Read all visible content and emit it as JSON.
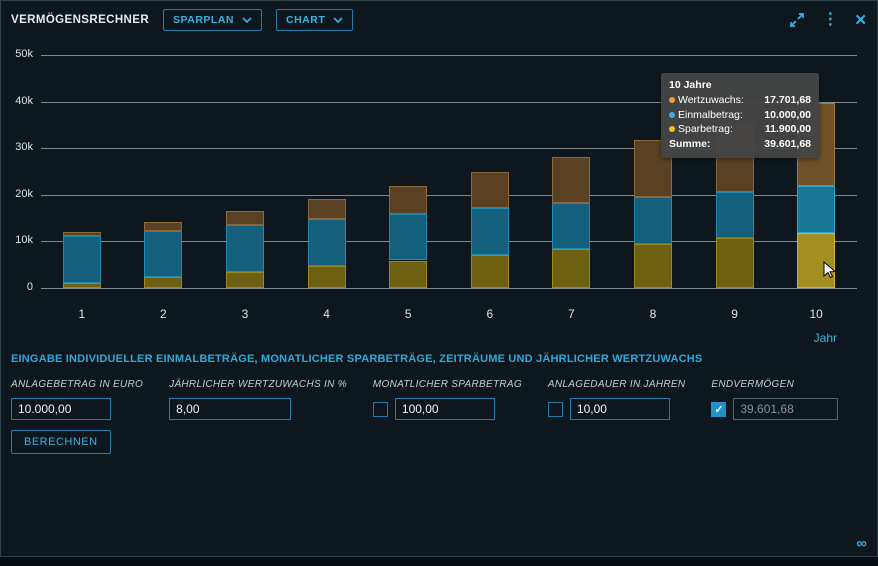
{
  "window": {
    "title": "VERMÖGENSRECHNER",
    "dropdowns": [
      {
        "label": "SPARPLAN"
      },
      {
        "label": "CHART"
      }
    ],
    "icons": {
      "expand": "expand-icon",
      "more": "⋮",
      "close": "✕",
      "link": "∞"
    }
  },
  "chart_data": {
    "type": "bar",
    "stacked": true,
    "title": "",
    "xlabel": "Jahr",
    "ylabel": "",
    "ylim": [
      0,
      50000
    ],
    "grid": true,
    "categories": [
      "1",
      "2",
      "3",
      "4",
      "5",
      "6",
      "7",
      "8",
      "9",
      "10"
    ],
    "yticks": [
      {
        "value": 0,
        "label": "0"
      },
      {
        "value": 10000,
        "label": "10k"
      },
      {
        "value": 20000,
        "label": "20k"
      },
      {
        "value": 30000,
        "label": "30k"
      },
      {
        "value": 40000,
        "label": "40k"
      },
      {
        "value": 50000,
        "label": "50k"
      }
    ],
    "hovered_index": 9,
    "series": [
      {
        "key": "sparbetrag",
        "name": "Sparbetrag",
        "color": "#6e6013",
        "border": "#9a871f",
        "hover_color": "#a38e22",
        "hover_border": "#cdb52e",
        "values": [
          1100,
          2300,
          3500,
          4700,
          5900,
          7100,
          8300,
          9500,
          10700,
          11900
        ]
      },
      {
        "key": "einmalbetrag",
        "name": "Einmalbetrag",
        "color": "#135f7c",
        "border": "#2089ad",
        "hover_color": "#187795",
        "hover_border": "#2fa3c8",
        "values": [
          10000,
          10000,
          10000,
          10000,
          10000,
          10000,
          10000,
          10000,
          10000,
          10000
        ]
      },
      {
        "key": "wertzuwachs",
        "name": "Wertzuwachs",
        "color": "#5b4124",
        "border": "#8a6a3c",
        "hover_color": "#6f5029",
        "hover_border": "#a07c45",
        "values": [
          833,
          1832,
          3010,
          4384,
          5968,
          7780,
          9838,
          12162,
          14776,
          17701.68
        ]
      }
    ]
  },
  "tooltip": {
    "title": "10 Jahre",
    "rows": [
      {
        "dot": "#f59c3e",
        "label": "Wertzuwachs:",
        "value": "17.701,68"
      },
      {
        "dot": "#3cb0dd",
        "label": "Einmalbetrag:",
        "value": "10.000,00"
      },
      {
        "dot": "#eec31e",
        "label": "Sparbetrag:",
        "value": "11.900,00"
      }
    ],
    "sum_label": "Summe:",
    "sum_value": "39.601,68"
  },
  "section_title": "EINGABE INDIVIDUELLER EINMALBETRÄGE, MONATLICHER SPARBETRÄGE, ZEITRÄUME UND JÄHRLICHER WERTZUWACHS",
  "form": {
    "fields": [
      {
        "label": "ANLAGEBETRAG IN EURO",
        "value": "10.000,00",
        "checkbox": null,
        "disabled": false
      },
      {
        "label": "JÄHRLICHER WERTZUWACHS IN %",
        "value": "8,00",
        "checkbox": null,
        "disabled": false
      },
      {
        "label": "MONATLICHER SPARBETRAG",
        "value": "100,00",
        "checkbox": false,
        "disabled": false
      },
      {
        "label": "ANLAGEDAUER IN JAHREN",
        "value": "10,00",
        "checkbox": false,
        "disabled": false
      },
      {
        "label": "ENDVERMÖGEN",
        "value": "39.601,68",
        "checkbox": true,
        "disabled": true
      }
    ],
    "submit_label": "BERECHNEN"
  }
}
